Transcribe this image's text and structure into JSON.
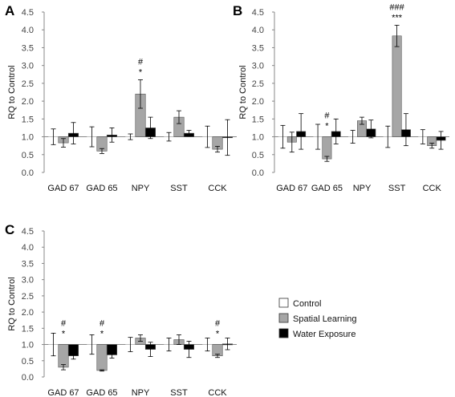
{
  "chart_data": [
    {
      "type": "bar",
      "panel": "A",
      "ylabel": "RQ to Control",
      "ylim": [
        0,
        4.5
      ],
      "yticks": [
        "0.0",
        "0.5",
        "1.0",
        "1.5",
        "2.0",
        "2.5",
        "3.0",
        "3.5",
        "4.0",
        "4.5"
      ],
      "categories": [
        "GAD 67",
        "GAD 65",
        "NPY",
        "SST",
        "CCK"
      ],
      "series": [
        {
          "name": "Control",
          "values": [
            1.0,
            1.0,
            1.0,
            1.0,
            1.0
          ],
          "errors": [
            0.22,
            0.28,
            0.08,
            0.12,
            0.3
          ]
        },
        {
          "name": "Spatial Learning",
          "values": [
            0.83,
            0.6,
            2.2,
            1.55,
            0.65
          ],
          "errors": [
            0.12,
            0.07,
            0.4,
            0.18,
            0.08
          ]
        },
        {
          "name": "Water Exposure",
          "values": [
            1.1,
            1.05,
            1.25,
            1.1,
            0.98
          ],
          "errors": [
            0.3,
            0.2,
            0.3,
            0.08,
            0.5
          ]
        }
      ],
      "annotations": [
        {
          "category": "NPY",
          "series": "Spatial Learning",
          "lines": [
            "#",
            "*"
          ]
        }
      ]
    },
    {
      "type": "bar",
      "panel": "B",
      "ylabel": "RQ to Control",
      "ylim": [
        0,
        4.5
      ],
      "yticks": [
        "0.0",
        "0.5",
        "1.0",
        "1.5",
        "2.0",
        "2.5",
        "3.0",
        "3.5",
        "4.0",
        "4.5"
      ],
      "categories": [
        "GAD 67",
        "GAD 65",
        "NPY",
        "SST",
        "CCK"
      ],
      "series": [
        {
          "name": "Control",
          "values": [
            1.0,
            1.0,
            1.0,
            1.0,
            1.0
          ],
          "errors": [
            0.32,
            0.35,
            0.18,
            0.3,
            0.2
          ]
        },
        {
          "name": "Spatial Learning",
          "values": [
            0.85,
            0.38,
            1.45,
            3.83,
            0.75
          ],
          "errors": [
            0.28,
            0.07,
            0.1,
            0.3,
            0.07
          ]
        },
        {
          "name": "Water Exposure",
          "values": [
            1.15,
            1.15,
            1.22,
            1.2,
            0.9
          ],
          "errors": [
            0.5,
            0.35,
            0.25,
            0.45,
            0.25
          ]
        }
      ],
      "annotations": [
        {
          "category": "GAD 65",
          "series": "Spatial Learning",
          "lines": [
            "#",
            "*"
          ]
        },
        {
          "category": "SST",
          "series": "Spatial Learning",
          "lines": [
            "###",
            "***"
          ]
        }
      ]
    },
    {
      "type": "bar",
      "panel": "C",
      "ylabel": "RQ to Control",
      "ylim": [
        0,
        4.5
      ],
      "yticks": [
        "0.0",
        "0.5",
        "1.0",
        "1.5",
        "2.0",
        "2.5",
        "3.0",
        "3.5",
        "4.0",
        "4.5"
      ],
      "categories": [
        "GAD 67",
        "GAD 65",
        "NPY",
        "SST",
        "CCK"
      ],
      "series": [
        {
          "name": "Control",
          "values": [
            1.0,
            1.0,
            1.0,
            1.0,
            1.0
          ],
          "errors": [
            0.35,
            0.3,
            0.22,
            0.2,
            0.2
          ]
        },
        {
          "name": "Spatial Learning",
          "values": [
            0.3,
            0.2,
            1.2,
            1.15,
            0.65
          ],
          "errors": [
            0.08,
            0.02,
            0.1,
            0.15,
            0.05
          ]
        },
        {
          "name": "Water Exposure",
          "values": [
            0.65,
            0.68,
            0.85,
            0.85,
            1.02
          ],
          "errors": [
            0.1,
            0.1,
            0.22,
            0.25,
            0.18
          ]
        }
      ],
      "annotations": [
        {
          "category": "GAD 67",
          "series": "Spatial Learning",
          "lines": [
            "#",
            "*"
          ]
        },
        {
          "category": "GAD 65",
          "series": "Spatial Learning",
          "lines": [
            "#",
            "*"
          ]
        },
        {
          "category": "CCK",
          "series": "Spatial Learning",
          "lines": [
            "#",
            "*"
          ]
        }
      ]
    }
  ],
  "legend": {
    "items": [
      {
        "label": "Control",
        "color": "#ffffff"
      },
      {
        "label": "Spatial Learning",
        "color": "#a6a6a6"
      },
      {
        "label": "Water Exposure",
        "color": "#000000"
      }
    ]
  },
  "colors": {
    "control": "#ffffff",
    "spatial_learning": "#a6a6a6",
    "water_exposure": "#000000",
    "axis": "#888888"
  }
}
